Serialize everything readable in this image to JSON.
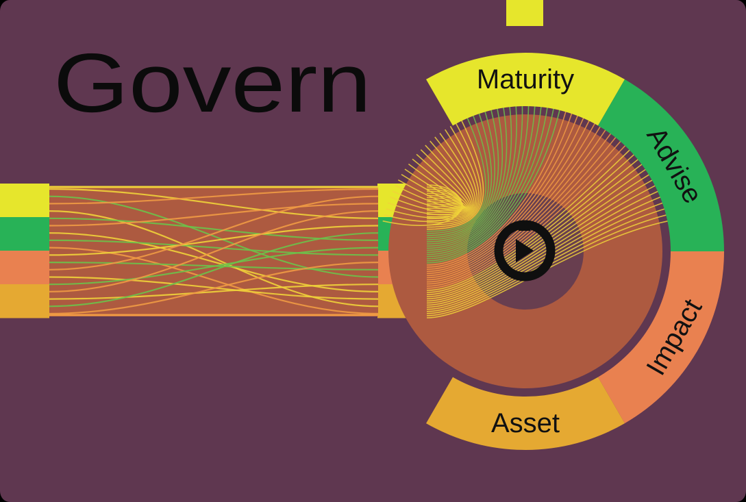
{
  "title": "Govern",
  "segments": [
    {
      "key": "maturity",
      "label": "Maturity",
      "color": "#e6e62c"
    },
    {
      "key": "advise",
      "label": "Advise",
      "color": "#28b257"
    },
    {
      "key": "impact",
      "label": "Impact",
      "color": "#e98150"
    },
    {
      "key": "asset",
      "label": "Asset",
      "color": "#e5a932"
    }
  ],
  "colors": {
    "background": "#5f3750",
    "band_fill": "#ad5a40",
    "core_fill": "#5c3a52",
    "thread_yellow": "#f0d23a",
    "thread_green": "#6cc24a",
    "thread_orange": "#f09a44",
    "logo": "#0f0f0f"
  },
  "logo": {
    "icon": "play-badge-icon"
  }
}
